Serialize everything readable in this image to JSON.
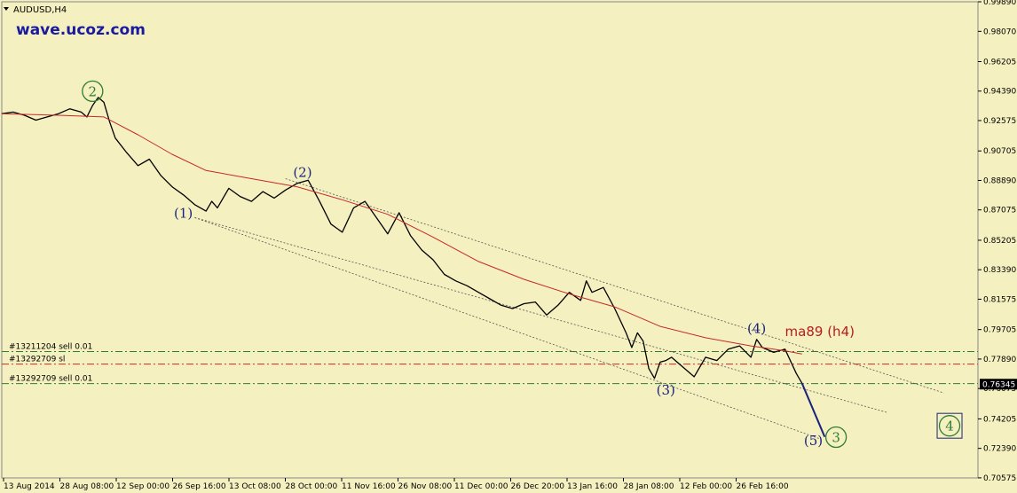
{
  "header": {
    "symbol_title": "AUDUSD,H4"
  },
  "watermark": "wave.ucoz.com",
  "colors": {
    "background": "#f5f0c0",
    "price": "#000000",
    "ma": "#c62828",
    "channel": "#555555",
    "projection": "#1a237e",
    "trade_green": "#2e7d32",
    "trade_red": "#c62828",
    "wave_blue": "#1a237e",
    "wave_green": "#2e7d32"
  },
  "chart_data": {
    "type": "line",
    "title": "AUDUSD,H4",
    "ylim": [
      0.7057,
      0.9989
    ],
    "grid": false,
    "y_ticks": [
      "0.99890",
      "0.98070",
      "0.96205",
      "0.94390",
      "0.92575",
      "0.90705",
      "0.88890",
      "0.87075",
      "0.85205",
      "0.83390",
      "0.81575",
      "0.79705",
      "0.77890",
      "0.76075",
      "0.74205",
      "0.72390",
      "0.70575"
    ],
    "x_ticks": [
      "13 Aug 2014",
      "28 Aug 08:00",
      "12 Sep 00:00",
      "26 Sep 16:00",
      "13 Oct 08:00",
      "28 Oct 00:00",
      "11 Nov 16:00",
      "26 Nov 08:00",
      "11 Dec 00:00",
      "26 Dec 20:00",
      "13 Jan 16:00",
      "28 Jan 08:00",
      "12 Feb 00:00",
      "26 Feb 16:00"
    ],
    "current_price": "0.76345",
    "series": [
      {
        "name": "AUDUSD",
        "kind": "price",
        "points": [
          [
            0,
            0.93
          ],
          [
            2,
            0.931
          ],
          [
            4,
            0.929
          ],
          [
            6,
            0.926
          ],
          [
            8,
            0.928
          ],
          [
            10,
            0.93
          ],
          [
            12,
            0.933
          ],
          [
            14,
            0.931
          ],
          [
            15,
            0.928
          ],
          [
            16,
            0.935
          ],
          [
            17,
            0.94
          ],
          [
            18,
            0.937
          ],
          [
            19,
            0.925
          ],
          [
            20,
            0.915
          ],
          [
            22,
            0.906
          ],
          [
            24,
            0.898
          ],
          [
            26,
            0.902
          ],
          [
            28,
            0.892
          ],
          [
            30,
            0.885
          ],
          [
            32,
            0.88
          ],
          [
            34,
            0.874
          ],
          [
            36,
            0.87
          ],
          [
            37,
            0.876
          ],
          [
            38,
            0.872
          ],
          [
            40,
            0.884
          ],
          [
            42,
            0.879
          ],
          [
            44,
            0.876
          ],
          [
            46,
            0.882
          ],
          [
            48,
            0.878
          ],
          [
            50,
            0.883
          ],
          [
            52,
            0.887
          ],
          [
            54,
            0.889
          ],
          [
            56,
            0.876
          ],
          [
            58,
            0.862
          ],
          [
            60,
            0.857
          ],
          [
            62,
            0.872
          ],
          [
            64,
            0.876
          ],
          [
            66,
            0.866
          ],
          [
            68,
            0.856
          ],
          [
            70,
            0.869
          ],
          [
            72,
            0.855
          ],
          [
            74,
            0.846
          ],
          [
            76,
            0.84
          ],
          [
            78,
            0.831
          ],
          [
            80,
            0.827
          ],
          [
            82,
            0.824
          ],
          [
            84,
            0.82
          ],
          [
            86,
            0.816
          ],
          [
            88,
            0.812
          ],
          [
            90,
            0.81
          ],
          [
            92,
            0.813
          ],
          [
            94,
            0.814
          ],
          [
            96,
            0.806
          ],
          [
            98,
            0.812
          ],
          [
            100,
            0.82
          ],
          [
            102,
            0.815
          ],
          [
            103,
            0.827
          ],
          [
            104,
            0.82
          ],
          [
            106,
            0.823
          ],
          [
            108,
            0.81
          ],
          [
            110,
            0.795
          ],
          [
            111,
            0.786
          ],
          [
            112,
            0.795
          ],
          [
            113,
            0.79
          ],
          [
            114,
            0.773
          ],
          [
            115,
            0.767
          ],
          [
            116,
            0.777
          ],
          [
            117,
            0.778
          ],
          [
            118,
            0.78
          ],
          [
            120,
            0.774
          ],
          [
            122,
            0.768
          ],
          [
            124,
            0.78
          ],
          [
            126,
            0.778
          ],
          [
            128,
            0.785
          ],
          [
            130,
            0.787
          ],
          [
            132,
            0.78
          ],
          [
            133,
            0.791
          ],
          [
            134,
            0.786
          ],
          [
            136,
            0.783
          ],
          [
            138,
            0.785
          ],
          [
            140,
            0.77
          ],
          [
            141,
            0.764
          ]
        ]
      },
      {
        "name": "ma89 (h4)",
        "kind": "ma",
        "points": [
          [
            0,
            0.93
          ],
          [
            10,
            0.929
          ],
          [
            18,
            0.928
          ],
          [
            24,
            0.917
          ],
          [
            30,
            0.905
          ],
          [
            36,
            0.895
          ],
          [
            44,
            0.89
          ],
          [
            52,
            0.885
          ],
          [
            60,
            0.877
          ],
          [
            68,
            0.868
          ],
          [
            76,
            0.854
          ],
          [
            84,
            0.839
          ],
          [
            92,
            0.828
          ],
          [
            100,
            0.819
          ],
          [
            108,
            0.811
          ],
          [
            116,
            0.799
          ],
          [
            124,
            0.792
          ],
          [
            132,
            0.787
          ],
          [
            138,
            0.784
          ],
          [
            141,
            0.782
          ]
        ]
      }
    ],
    "projection": [
      [
        141,
        0.764
      ],
      [
        145,
        0.731
      ]
    ],
    "channels": [
      [
        [
          50,
          0.89
        ],
        [
          166,
          0.758
        ]
      ],
      [
        [
          34,
          0.866
        ],
        [
          156,
          0.746
        ]
      ],
      [
        [
          34,
          0.866
        ],
        [
          144,
          0.73
        ]
      ]
    ],
    "trade_lines": [
      {
        "label": "#13211204 sell 0.01",
        "price": 0.7835,
        "style": "green-dashdot"
      },
      {
        "label": "#13292709 sl",
        "price": 0.7758,
        "style": "red-dashdot"
      },
      {
        "label": "#13292709 sell 0.01",
        "price": 0.7638,
        "style": "green-dashdot"
      }
    ],
    "wave_labels": [
      {
        "text": "2",
        "x": 16,
        "y": 0.94,
        "kind": "green-circle"
      },
      {
        "text": "(1)",
        "x": 32,
        "y": 0.866,
        "kind": "blue"
      },
      {
        "text": "(2)",
        "x": 53,
        "y": 0.891,
        "kind": "blue"
      },
      {
        "text": "(3)",
        "x": 117,
        "y": 0.757,
        "kind": "blue"
      },
      {
        "text": "(4)",
        "x": 133,
        "y": 0.795,
        "kind": "blue"
      },
      {
        "text": "(5)",
        "x": 143,
        "y": 0.726,
        "kind": "blue"
      },
      {
        "text": "3",
        "x": 147,
        "y": 0.727,
        "kind": "green-circle"
      },
      {
        "text": "4",
        "x": 167,
        "y": 0.734,
        "kind": "green-circle-box"
      }
    ],
    "annotations": [
      {
        "text": "ma89 (h4)",
        "x": 138,
        "y": 0.793,
        "color": "#b71c1c"
      }
    ]
  }
}
